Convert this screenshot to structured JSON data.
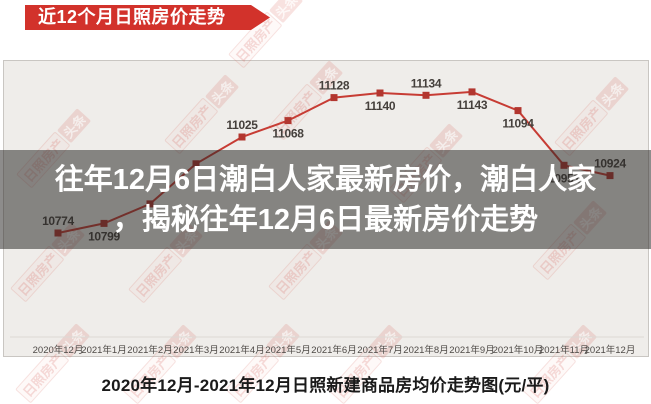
{
  "header": {
    "banner_label": "近12个月日照房价走势"
  },
  "overlay": {
    "line1": "往年12月6日潮白人家最新房价，潮白人家",
    "line2": "，揭秘往年12月6日最新房价走势"
  },
  "watermark": {
    "brand_left": "日照房产",
    "brand_right": "头条"
  },
  "colors": {
    "banner_red": "#d2322b",
    "line_red": "#c73c34",
    "marker_red": "#b2362f",
    "panel_bg": "#efedea",
    "overlay_bg": "rgba(40,38,35,0.53)",
    "label_gray": "#45403c",
    "axis_label_gray": "#4e4a47"
  },
  "chart_data": {
    "type": "line",
    "title": "2020年12月-2021年12月日照新建商品房均价走势图(元/平)",
    "unit": "元/平",
    "categories": [
      "2020年12月",
      "2021年1月",
      "2021年2月",
      "2021年3月",
      "2021年4月",
      "2021年5月",
      "2021年6月",
      "2021年7月",
      "2021年8月",
      "2021年9月",
      "2021年10月",
      "2021年11月",
      "2021年12月"
    ],
    "values": [
      10774,
      10799,
      10850,
      10955,
      11025,
      11068,
      11128,
      11140,
      11134,
      11143,
      11094,
      10951,
      10924
    ],
    "point_labels": [
      "10774",
      "10799",
      "",
      "",
      "11025",
      "11068",
      "11128",
      "11140",
      "11134",
      "11143",
      "11094",
      "10951",
      "10924"
    ],
    "label_side": [
      "up",
      "down",
      "none",
      "none",
      "up",
      "down",
      "up",
      "down",
      "up",
      "down",
      "down",
      "down",
      "up"
    ],
    "estimated_indices": [
      2,
      3
    ],
    "ylim": [
      10650,
      11250
    ],
    "grid": false,
    "legend": "none"
  }
}
